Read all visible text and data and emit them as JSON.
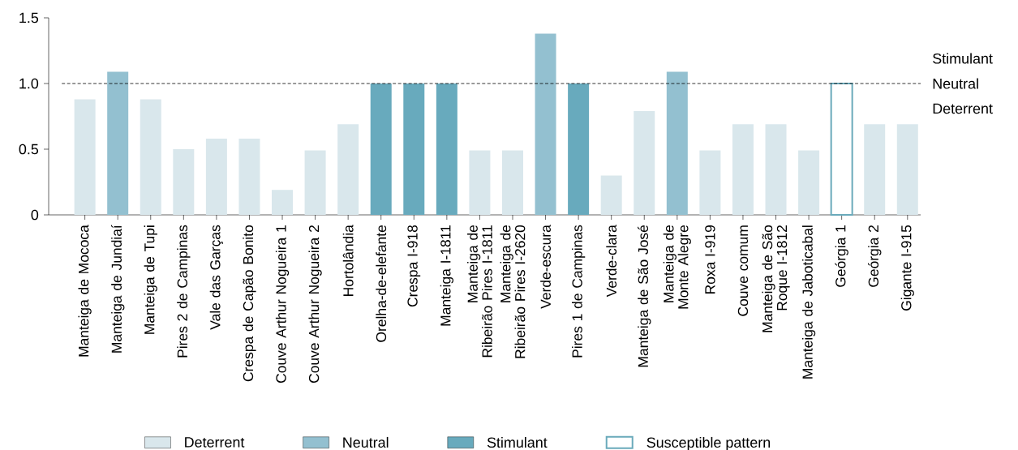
{
  "chart_data": {
    "type": "bar",
    "categories": [
      "Manteiga de Mococa",
      "Manteiga de Jundiaí",
      "Manteiga de Tupi",
      "Pires 2 de Campinas",
      "Vale das Garças",
      "Crespa de Capão Bonito",
      "Couve Arthur Nogueira 1",
      "Couve Arthur Nogueira 2",
      "Hortolândia",
      "Orelha-de-elefante",
      "Crespa I-918",
      "Manteiga I-1811",
      "Manteiga de Ribeirão Pires I-1811",
      "Manteiga de Ribeirão Pires I-2620",
      "Verde-escura",
      "Pires 1 de Campinas",
      "Verde-clara",
      "Manteiga de São José",
      "Manteiga de Monte Alegre",
      "Roxa I-919",
      "Couve comum",
      "Manteiga de São Roque I-1812",
      "Manteiga de Jaboticabal",
      "Geórgia 1",
      "Geórgia 2",
      "Gigante I-915"
    ],
    "series": [
      {
        "name": "Deterrent",
        "color": "#d9e7ec",
        "values": [
          0.88,
          null,
          0.88,
          0.5,
          0.58,
          0.58,
          0.19,
          0.49,
          0.69,
          null,
          null,
          null,
          0.49,
          0.49,
          null,
          null,
          0.3,
          0.79,
          null,
          0.49,
          0.69,
          0.69,
          0.49,
          null,
          0.69,
          0.69
        ]
      },
      {
        "name": "Neutral",
        "color": "#93c0d0",
        "values": [
          null,
          1.09,
          null,
          null,
          null,
          null,
          null,
          null,
          null,
          null,
          null,
          null,
          null,
          null,
          1.38,
          null,
          null,
          null,
          1.09,
          null,
          null,
          null,
          null,
          null,
          null,
          null
        ]
      },
      {
        "name": "Stimulant",
        "color": "#68aabd",
        "values": [
          null,
          null,
          null,
          null,
          null,
          null,
          null,
          null,
          null,
          1.0,
          1.0,
          1.0,
          null,
          null,
          null,
          1.0,
          null,
          null,
          null,
          null,
          null,
          null,
          null,
          null,
          null,
          null
        ]
      },
      {
        "name": "Susceptible pattern",
        "color": "#6aaabb",
        "line_style": "solid",
        "values": [
          null,
          null,
          null,
          null,
          null,
          null,
          null,
          null,
          null,
          null,
          null,
          null,
          null,
          null,
          null,
          null,
          null,
          null,
          null,
          null,
          null,
          null,
          null,
          1.0,
          null,
          null
        ]
      }
    ],
    "ylim": [
      0,
      1.5
    ],
    "yticks": [
      {
        "value": 0,
        "label": "0"
      },
      0.5,
      {
        "value": 1.0,
        "label": "1.0"
      },
      1.5
    ],
    "ref_lines": [
      {
        "axis": "y",
        "value": 1.0,
        "line_style": "dashed"
      }
    ],
    "annotations": [
      "Stimulant",
      "Neutral",
      "Deterrent"
    ],
    "legend": "bottom",
    "grid": false
  }
}
